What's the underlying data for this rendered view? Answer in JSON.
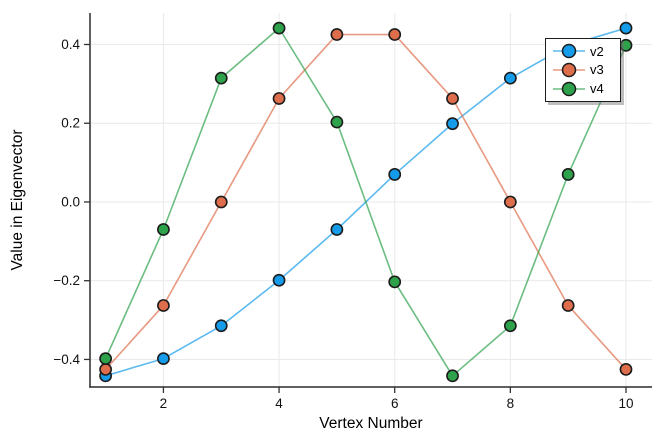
{
  "chart_data": {
    "type": "line",
    "title": "",
    "xlabel": "Vertex Number",
    "ylabel": "Value in Eigenvector",
    "x": [
      1,
      2,
      3,
      4,
      5,
      6,
      7,
      8,
      9,
      10
    ],
    "series": [
      {
        "name": "v2",
        "color": "#149BE9",
        "values": [
          -0.4416,
          -0.3979,
          -0.3145,
          -0.1989,
          -0.0699,
          0.0699,
          0.1989,
          0.3145,
          0.3979,
          0.4416
        ]
      },
      {
        "name": "v3",
        "color": "#DE6E4B",
        "values": [
          -0.4253,
          -0.2629,
          0.0,
          0.2629,
          0.4253,
          0.4253,
          0.2629,
          0.0,
          -0.2629,
          -0.4253
        ]
      },
      {
        "name": "v4",
        "color": "#2EA14B",
        "values": [
          -0.3979,
          -0.0699,
          0.3145,
          0.4416,
          0.2029,
          -0.2029,
          -0.4416,
          -0.3145,
          0.0699,
          0.3979
        ]
      }
    ],
    "xlim": [
      0.73,
      10.45
    ],
    "ylim": [
      -0.47,
      0.48
    ],
    "xticks": [
      2,
      4,
      6,
      8,
      10
    ],
    "xtick_labels": [
      "2",
      "4",
      "6",
      "8",
      "10"
    ],
    "yticks": [
      -0.4,
      -0.2,
      0.0,
      0.2,
      0.4
    ],
    "ytick_labels": [
      "−0.4",
      "−0.2",
      "0.0",
      "0.2",
      "0.4"
    ],
    "grid": true,
    "legend_position": "top-right",
    "legend_items": [
      "v2",
      "v3",
      "v4"
    ]
  },
  "style": {
    "background": "#FFFFFF",
    "grid_color": "#E9E9E9",
    "spine_color": "#2B2B2B",
    "tick_color": "#333333",
    "marker_stroke": "#1C1C1C",
    "text_color": "#111111",
    "line_opacity": 0.7
  }
}
